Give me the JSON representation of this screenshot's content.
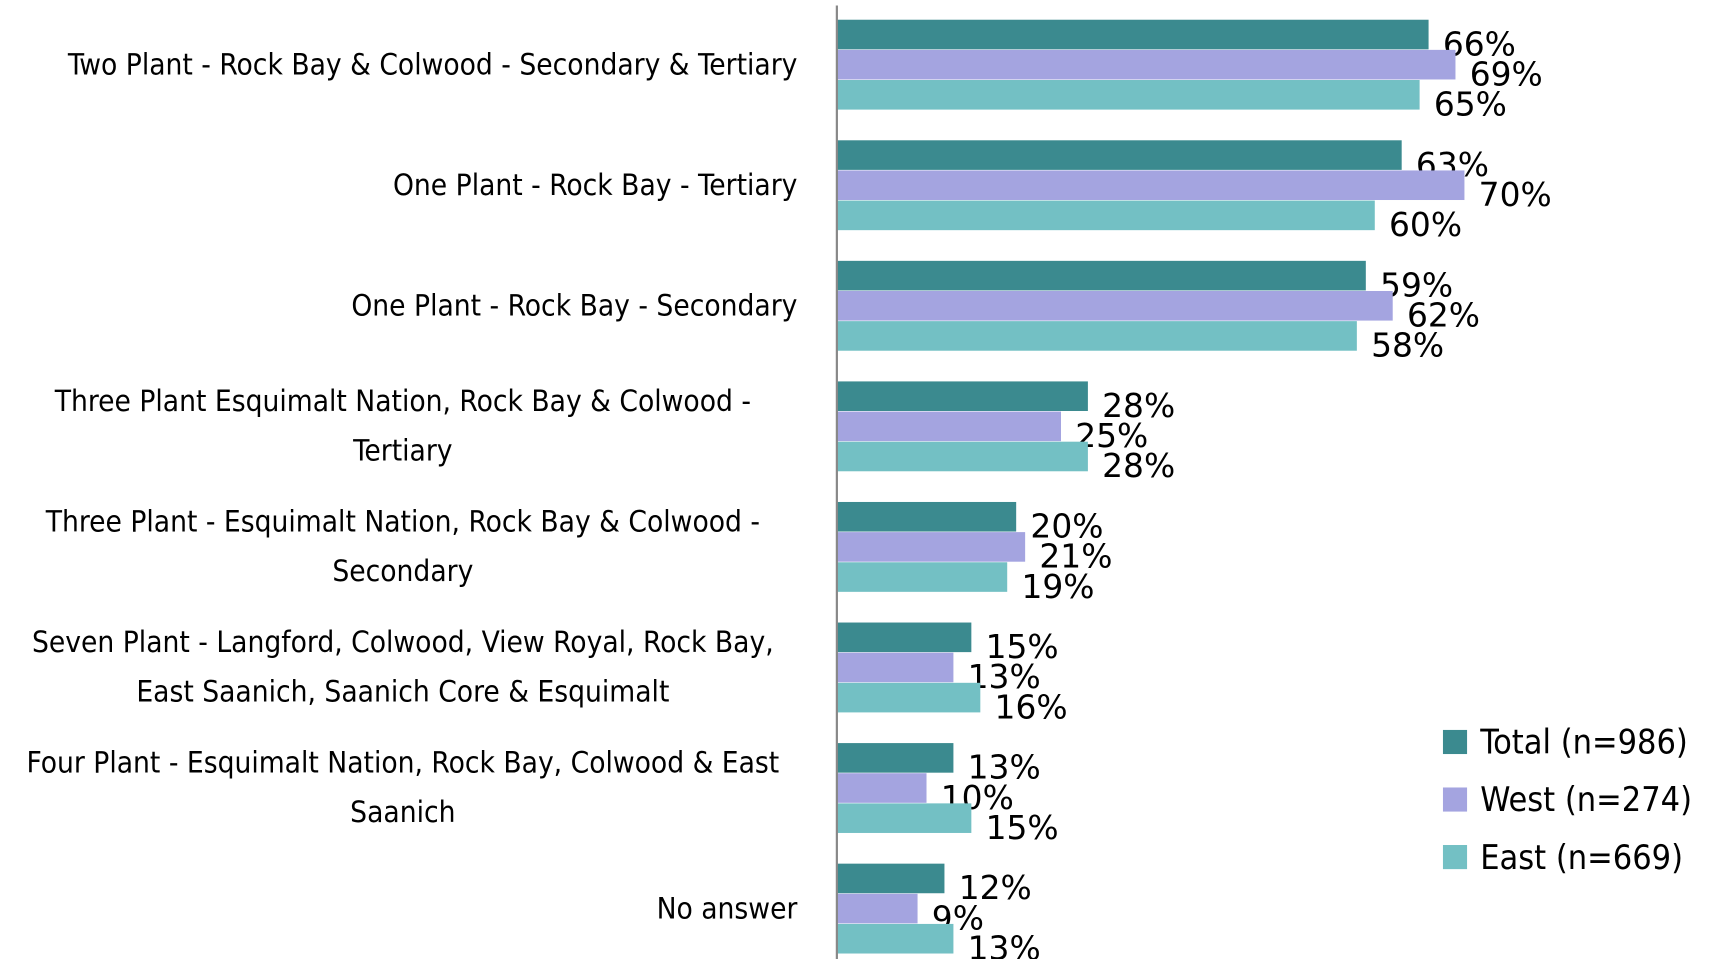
{
  "chart_data": {
    "type": "hbar",
    "categories": [
      "Two Plant - Rock Bay & Colwood - Secondary & Tertiary",
      "One Plant - Rock Bay - Tertiary",
      "One Plant - Rock Bay - Secondary",
      "Three Plant Esquimalt Nation, Rock Bay & Colwood - Tertiary",
      "Three Plant - Esquimalt Nation, Rock Bay & Colwood - Secondary",
      "Seven Plant - Langford, Colwood, View Royal, Rock Bay, East Saanich, Saanich Core & Esquimalt",
      "Four Plant - Esquimalt Nation, Rock Bay, Colwood & East Saanich",
      "No answer"
    ],
    "series": [
      {
        "name": "Total (n=986)",
        "color": "#3b8a8f",
        "values": [
          66,
          63,
          59,
          28,
          20,
          15,
          13,
          12
        ],
        "value_labels": [
          "66%",
          "63%",
          "59%",
          "28%",
          "20%",
          "15%",
          "13%",
          "12%"
        ]
      },
      {
        "name": "West (n=274)",
        "color": "#a4a4e0",
        "values": [
          69,
          70,
          62,
          25,
          21,
          13,
          10,
          9
        ],
        "value_labels": [
          "69%",
          "70%",
          "62%",
          "25%",
          "21%",
          "13%",
          "10%",
          "9%"
        ]
      },
      {
        "name": "East (n=669)",
        "color": "#73c0c4",
        "values": [
          65,
          60,
          58,
          28,
          19,
          16,
          15,
          13
        ],
        "value_labels": [
          "65%",
          "60%",
          "58%",
          "28%",
          "19%",
          "16%",
          "15%",
          "13%"
        ]
      }
    ],
    "xlim": [
      0,
      100
    ],
    "legend": "lower right"
  }
}
